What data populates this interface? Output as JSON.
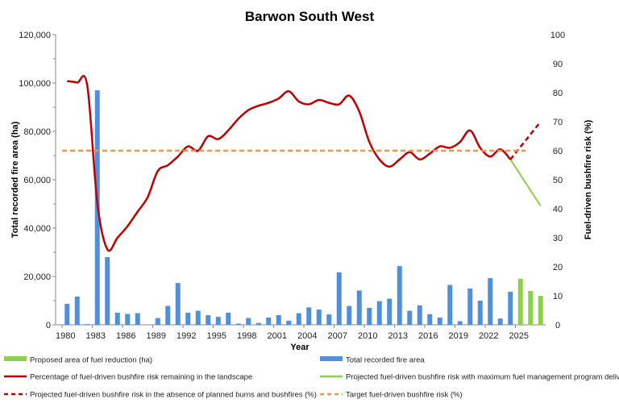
{
  "chart_data": {
    "type": "bar+line",
    "title": "Barwon South West",
    "xlabel": "Year",
    "ylabel_left": "Total recorded fire area (ha)",
    "ylabel_right": "Fuel-driven bushfire risk (%)",
    "ylim_left": [
      0,
      120000
    ],
    "ylim_right": [
      0,
      100
    ],
    "yticks_left": [
      "0",
      "20,000",
      "40,000",
      "60,000",
      "80,000",
      "100,000",
      "120,000"
    ],
    "yticks_right": [
      "0",
      "10",
      "20",
      "30",
      "40",
      "50",
      "60",
      "70",
      "80",
      "90",
      "100"
    ],
    "xtick_labels": [
      "1980",
      "1983",
      "1986",
      "1989",
      "1992",
      "1995",
      "1998",
      "2001",
      "2004",
      "2007",
      "2010",
      "2013",
      "2016",
      "2019",
      "2022",
      "2025"
    ],
    "grid": false,
    "legend_placement": "bottom",
    "categories": [
      1980,
      1981,
      1982,
      1983,
      1984,
      1985,
      1986,
      1987,
      1988,
      1989,
      1990,
      1991,
      1992,
      1993,
      1994,
      1995,
      1996,
      1997,
      1998,
      1999,
      2000,
      2001,
      2002,
      2003,
      2004,
      2005,
      2006,
      2007,
      2008,
      2009,
      2010,
      2011,
      2012,
      2013,
      2014,
      2015,
      2016,
      2017,
      2018,
      2019,
      2020,
      2021,
      2022,
      2023,
      2024,
      2025,
      2026,
      2027
    ],
    "series": [
      {
        "name": "Total recorded fire area",
        "type": "bar",
        "axis": "left",
        "color": "#4f8fdb",
        "x": [
          1980,
          1981,
          1982,
          1983,
          1984,
          1985,
          1986,
          1987,
          1988,
          1989,
          1990,
          1991,
          1992,
          1993,
          1994,
          1995,
          1996,
          1997,
          1998,
          1999,
          2000,
          2001,
          2002,
          2003,
          2004,
          2005,
          2006,
          2007,
          2008,
          2009,
          2010,
          2011,
          2012,
          2013,
          2014,
          2015,
          2016,
          2017,
          2018,
          2019,
          2020,
          2021,
          2022,
          2023,
          2024
        ],
        "values": [
          8700,
          11700,
          300,
          97000,
          28000,
          5000,
          4500,
          4800,
          0,
          2800,
          7800,
          17300,
          5000,
          5800,
          4000,
          3300,
          5000,
          500,
          2800,
          800,
          3000,
          4000,
          1700,
          4800,
          7200,
          6300,
          4300,
          21700,
          7800,
          14200,
          7000,
          9800,
          10800,
          24300,
          5800,
          8000,
          4400,
          3000,
          16500,
          1500,
          15000,
          10000,
          19300,
          2600,
          13700
        ]
      },
      {
        "name": "Proposed area of fuel reduction (ha)",
        "type": "bar",
        "axis": "left",
        "color": "#8dd04a",
        "x": [
          2025,
          2026,
          2027
        ],
        "values": [
          19000,
          14000,
          12000
        ]
      },
      {
        "name": "Percentage of fuel-driven bushfire risk remaining in the landscape",
        "type": "line",
        "axis": "right",
        "color": "#c00000",
        "x": [
          1980,
          1981,
          1982,
          1983,
          1984,
          1985,
          1986,
          1987,
          1988,
          1989,
          1990,
          1991,
          1992,
          1993,
          1994,
          1995,
          1996,
          1997,
          1998,
          1999,
          2000,
          2001,
          2002,
          2003,
          2004,
          2005,
          2006,
          2007,
          2008,
          2009,
          2010,
          2011,
          2012,
          2013,
          2014,
          2015,
          2016,
          2017,
          2018,
          2019,
          2020,
          2021,
          2022,
          2023,
          2024
        ],
        "values": [
          84,
          83.5,
          82.5,
          42,
          26,
          30,
          34,
          39,
          44,
          53,
          55,
          58,
          61.5,
          60,
          65,
          64,
          67,
          71,
          74,
          75.5,
          76.5,
          78,
          80.5,
          77,
          76,
          77.5,
          76.5,
          76,
          79,
          73.5,
          63,
          57,
          54.5,
          57,
          59.5,
          57,
          59,
          61.5,
          61,
          63,
          67,
          61,
          58,
          60.5,
          57
        ]
      },
      {
        "name": "Projected fuel-driven bushfire risk with maximum fuel management program delivery  (%)",
        "type": "line",
        "axis": "right",
        "color": "#8dd04a",
        "x": [
          2024,
          2027
        ],
        "values": [
          57,
          41
        ]
      },
      {
        "name": "Projected fuel-driven bushfire risk in the absence of planned burns and bushfires (%)",
        "type": "line",
        "dash": true,
        "axis": "right",
        "color": "#c00000",
        "x": [
          2024,
          2027
        ],
        "values": [
          57,
          70
        ]
      },
      {
        "name": "Target fuel-driven bushfire risk (%)",
        "type": "line",
        "dash": true,
        "axis": "right",
        "color": "#f7943c",
        "x": [
          1980,
          2027
        ],
        "values": [
          60,
          60
        ]
      }
    ]
  },
  "legend": [
    {
      "label": "Proposed area of fuel reduction (ha)",
      "kind": "bar",
      "color": "#8dd04a"
    },
    {
      "label": "Total recorded fire area",
      "kind": "bar",
      "color": "#4f8fdb"
    },
    {
      "label": "Percentage of fuel-driven bushfire risk remaining in the landscape",
      "kind": "line",
      "color": "#c00000"
    },
    {
      "label": "Projected fuel-driven bushfire risk with maximum fuel management program delivery  (%)",
      "kind": "line",
      "color": "#8dd04a"
    },
    {
      "label": "Projected fuel-driven bushfire risk in the absence of planned burns and bushfires (%)",
      "kind": "dash",
      "color": "#c00000"
    },
    {
      "label": "Target fuel-driven bushfire risk (%)",
      "kind": "dash",
      "color": "#f7943c"
    }
  ]
}
